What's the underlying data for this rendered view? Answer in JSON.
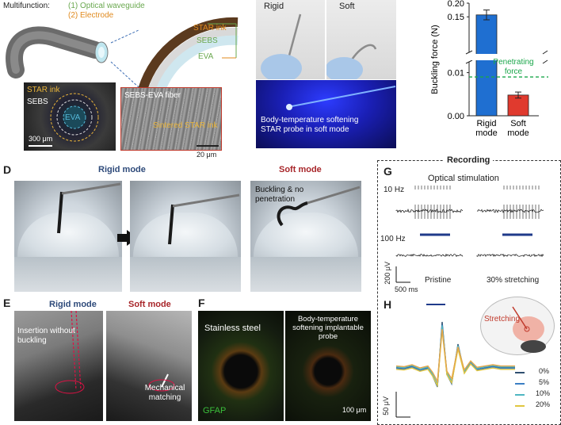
{
  "panel_a": {
    "multifunction": "Multifunction:",
    "items": [
      "(1) Optical waveguide",
      "(2) Electrode"
    ],
    "layers": [
      "STAR ink",
      "SEBS",
      "EVA"
    ],
    "micro_left": {
      "labels": [
        "STAR ink",
        "SEBS",
        "EVA"
      ],
      "scale": "300 μm"
    },
    "micro_right": {
      "labels": [
        "SEBS-EVA fiber",
        "Sintered STAR ink"
      ],
      "scale": "20 μm"
    }
  },
  "panel_b": {
    "rigid": "Rigid",
    "soft": "Soft",
    "caption": "Body-temperature softening STAR probe in soft mode"
  },
  "panel_c": {
    "chart_data": {
      "type": "bar",
      "categories": [
        "Rigid mode",
        "Soft mode"
      ],
      "values": [
        0.157,
        0.0048
      ],
      "errors": [
        0.018,
        0.0007
      ],
      "ylabel": "Buckling force (N)",
      "yticks_upper": [
        "0.20",
        "0.15"
      ],
      "yticks_lower": [
        "0.01",
        "0.00"
      ],
      "axis_break": true,
      "threshold": {
        "label": "Penetrating force",
        "value": 0.009
      },
      "colors": [
        "#1f6fd1",
        "#e03a2e"
      ],
      "threshold_color": "#1aa64a"
    }
  },
  "panel_d": {
    "letter": "D",
    "rigid_title": "Rigid mode",
    "soft_title": "Soft mode",
    "annotation": "Buckling & no penetration",
    "rigid_color": "#2e4a7a",
    "soft_color": "#a8262a"
  },
  "panel_e": {
    "letter": "E",
    "rigid_title": "Rigid mode",
    "soft_title": "Soft mode",
    "left_text": "Insertion without buckling",
    "right_text": "Mechanical matching"
  },
  "panel_f": {
    "letter": "F",
    "left_label": "Stainless steel",
    "right_label": "Body-temperature softening implantable probe",
    "stain": "GFAP",
    "scale": "100 μm"
  },
  "panel_g": {
    "letter": "G",
    "section_title": "Recording",
    "stim_title": "Optical stimulation",
    "rates": [
      "10 Hz",
      "100 Hz"
    ],
    "scale_v": "200 μV",
    "scale_t": "500 ms",
    "conditions": [
      "Pristine",
      "30% stretching"
    ]
  },
  "panel_h": {
    "letter": "H",
    "inset_label": "Stretching",
    "legend": [
      "0%",
      "5%",
      "10%",
      "20%"
    ],
    "legend_colors": [
      "#2f4f6f",
      "#3b7fc4",
      "#4fb6c2",
      "#e0c640"
    ],
    "scale_v": "50 μV"
  }
}
